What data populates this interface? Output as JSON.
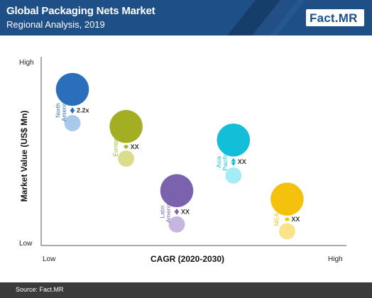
{
  "header": {
    "title": "Global Packaging Nets Market",
    "subtitle": "Regional Analysis, 2019",
    "logo": {
      "main": "Fact",
      "dot": ".",
      "suffix": "MR"
    }
  },
  "colors": {
    "header_bg": "#1e4f86",
    "header_dark": "#173e6b",
    "footer_bg": "#3b3b3b"
  },
  "footer": {
    "source": "Source: Fact.MR"
  },
  "chart_data": {
    "type": "scatter",
    "xlabel": "CAGR (2020-2030)",
    "ylabel": "Market Value (US$ Mn)",
    "x_ticks": [
      "Low",
      "High"
    ],
    "y_ticks": [
      "Low",
      "High"
    ],
    "xlim": [
      0,
      100
    ],
    "ylim": [
      0,
      100
    ],
    "regions": [
      {
        "name": [
          "North",
          "America"
        ],
        "x": 10,
        "y": 87,
        "y_future": 67,
        "size": 0.75,
        "size_future": 0.37,
        "multiplier": "2.2x",
        "color": "#2a6fbb",
        "color_future": "#a8c8ec"
      },
      {
        "name": [
          "Europe"
        ],
        "x": 28,
        "y": 65,
        "y_future": 46,
        "size": 0.75,
        "size_future": 0.37,
        "multiplier": "XX",
        "color": "#a3ae22",
        "color_future": "#d9de8f"
      },
      {
        "name": [
          "Latin",
          "America"
        ],
        "x": 45,
        "y": 27,
        "y_future": 7,
        "size": 0.75,
        "size_future": 0.37,
        "multiplier": "XX",
        "color": "#7a62ae",
        "color_future": "#c4b6de"
      },
      {
        "name": [
          "Asia",
          "Pacific"
        ],
        "x": 64,
        "y": 57,
        "y_future": 36,
        "size": 0.75,
        "size_future": 0.37,
        "multiplier": "XX",
        "color": "#13bfd8",
        "color_future": "#a4ecf6"
      },
      {
        "name": [
          "MEA"
        ],
        "x": 82,
        "y": 22,
        "y_future": 3,
        "size": 0.75,
        "size_future": 0.37,
        "multiplier": "XX",
        "color": "#f4c20d",
        "color_future": "#fbe38a"
      }
    ]
  }
}
